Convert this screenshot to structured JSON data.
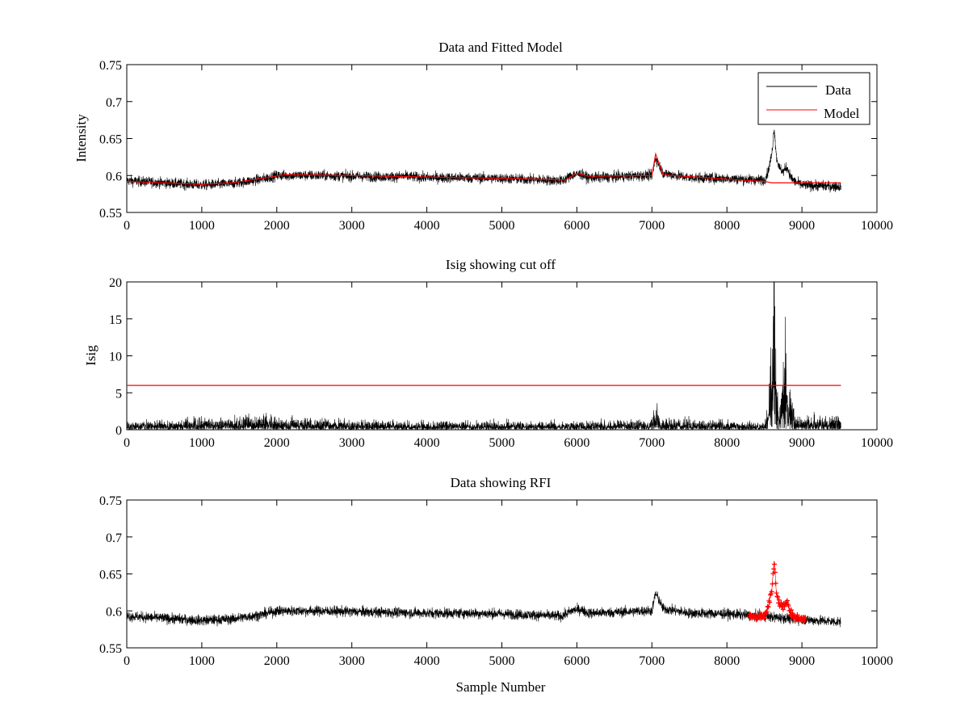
{
  "colors": {
    "data": "#000000",
    "model": "#ff0000",
    "axes": "#000000",
    "background": "#ffffff"
  },
  "chart_data": [
    {
      "type": "line",
      "title": "Data and Fitted Model",
      "xlabel": "",
      "ylabel": "Intensity",
      "xlim": [
        0,
        10000
      ],
      "ylim": [
        0.55,
        0.75
      ],
      "xticks": [
        0,
        1000,
        2000,
        3000,
        4000,
        5000,
        6000,
        7000,
        8000,
        9000,
        10000
      ],
      "yticks": [
        0.55,
        0.6,
        0.65,
        0.7,
        0.75
      ],
      "ytick_labels": [
        "0.55",
        "0.6",
        "0.65",
        "0.7",
        "0.75"
      ],
      "legend": {
        "placement": "top-right",
        "entries": [
          "Data",
          "Model"
        ]
      },
      "series": [
        {
          "name": "Data",
          "color": "#000000",
          "noise": 0.005,
          "points": [
            [
              0,
              0.593
            ],
            [
              500,
              0.59
            ],
            [
              1000,
              0.587
            ],
            [
              1400,
              0.589
            ],
            [
              1800,
              0.595
            ],
            [
              2000,
              0.6
            ],
            [
              2500,
              0.6
            ],
            [
              3000,
              0.599
            ],
            [
              3500,
              0.598
            ],
            [
              3700,
              0.599
            ],
            [
              4000,
              0.597
            ],
            [
              4500,
              0.597
            ],
            [
              5000,
              0.596
            ],
            [
              5800,
              0.593
            ],
            [
              5950,
              0.601
            ],
            [
              6050,
              0.602
            ],
            [
              6150,
              0.597
            ],
            [
              6500,
              0.598
            ],
            [
              6900,
              0.6
            ],
            [
              7000,
              0.6
            ],
            [
              7050,
              0.624
            ],
            [
              7150,
              0.603
            ],
            [
              7500,
              0.597
            ],
            [
              8000,
              0.596
            ],
            [
              8400,
              0.594
            ],
            [
              8500,
              0.594
            ],
            [
              8550,
              0.605
            ],
            [
              8600,
              0.63
            ],
            [
              8630,
              0.665
            ],
            [
              8660,
              0.625
            ],
            [
              8700,
              0.61
            ],
            [
              8750,
              0.605
            ],
            [
              8800,
              0.612
            ],
            [
              8850,
              0.598
            ],
            [
              8900,
              0.592
            ],
            [
              9000,
              0.587
            ],
            [
              9520,
              0.585
            ]
          ]
        },
        {
          "name": "Model",
          "color": "#ff0000",
          "noise": 0,
          "points": [
            [
              0,
              0.592
            ],
            [
              1000,
              0.588
            ],
            [
              1400,
              0.59
            ],
            [
              1800,
              0.596
            ],
            [
              2100,
              0.601
            ],
            [
              3000,
              0.6
            ],
            [
              4000,
              0.598
            ],
            [
              5000,
              0.596
            ],
            [
              5850,
              0.594
            ],
            [
              6000,
              0.603
            ],
            [
              6150,
              0.599
            ],
            [
              7000,
              0.6
            ],
            [
              7050,
              0.629
            ],
            [
              7150,
              0.601
            ],
            [
              8000,
              0.595
            ],
            [
              8500,
              0.592
            ],
            [
              8600,
              0.59
            ],
            [
              9520,
              0.59
            ]
          ]
        }
      ]
    },
    {
      "type": "line",
      "title": "Isig showing cut off",
      "xlabel": "",
      "ylabel": "Isig",
      "xlim": [
        0,
        10000
      ],
      "ylim": [
        0,
        20
      ],
      "xticks": [
        0,
        1000,
        2000,
        3000,
        4000,
        5000,
        6000,
        7000,
        8000,
        9000,
        10000
      ],
      "yticks": [
        0,
        5,
        10,
        15,
        20
      ],
      "ytick_labels": [
        "0",
        "5",
        "10",
        "15",
        "20"
      ],
      "cutoff": {
        "value": 6,
        "x": [
          0,
          9520
        ],
        "color": "#ff0000"
      },
      "series": [
        {
          "color": "#000000",
          "points": [
            [
              0,
              0.6
            ],
            [
              500,
              0.8
            ],
            [
              1000,
              0.9
            ],
            [
              1500,
              1.1
            ],
            [
              1700,
              1.3
            ],
            [
              2000,
              1.0
            ],
            [
              3000,
              0.8
            ],
            [
              4000,
              0.7
            ],
            [
              5000,
              0.7
            ],
            [
              6000,
              0.7
            ],
            [
              7000,
              0.9
            ],
            [
              7050,
              2.0
            ],
            [
              7100,
              0.9
            ],
            [
              8000,
              0.7
            ],
            [
              8500,
              0.7
            ],
            [
              8550,
              2.5
            ],
            [
              8600,
              8.0
            ],
            [
              8625,
              17.3
            ],
            [
              8650,
              6.0
            ],
            [
              8700,
              1.5
            ],
            [
              8750,
              5.0
            ],
            [
              8780,
              8.0
            ],
            [
              8800,
              3.0
            ],
            [
              8850,
              4.5
            ],
            [
              8900,
              1.5
            ],
            [
              9000,
              1.2
            ],
            [
              9520,
              1.0
            ]
          ]
        }
      ]
    },
    {
      "type": "line",
      "title": "Data showing RFI",
      "xlabel": "Sample Number",
      "ylabel": "",
      "xlim": [
        0,
        10000
      ],
      "ylim": [
        0.55,
        0.75
      ],
      "xticks": [
        0,
        1000,
        2000,
        3000,
        4000,
        5000,
        6000,
        7000,
        8000,
        9000,
        10000
      ],
      "yticks": [
        0.55,
        0.6,
        0.65,
        0.7,
        0.75
      ],
      "ytick_labels": [
        "0.55",
        "0.6",
        "0.65",
        "0.7",
        "0.75"
      ],
      "series": [
        {
          "color": "#000000",
          "noise": 0.005,
          "points": [
            [
              0,
              0.593
            ],
            [
              500,
              0.59
            ],
            [
              1000,
              0.587
            ],
            [
              1400,
              0.589
            ],
            [
              1800,
              0.595
            ],
            [
              2000,
              0.6
            ],
            [
              2500,
              0.6
            ],
            [
              3000,
              0.599
            ],
            [
              3500,
              0.598
            ],
            [
              4000,
              0.597
            ],
            [
              4500,
              0.597
            ],
            [
              5000,
              0.596
            ],
            [
              5800,
              0.593
            ],
            [
              5950,
              0.601
            ],
            [
              6050,
              0.602
            ],
            [
              6150,
              0.597
            ],
            [
              6500,
              0.598
            ],
            [
              6900,
              0.6
            ],
            [
              7000,
              0.6
            ],
            [
              7050,
              0.624
            ],
            [
              7150,
              0.603
            ],
            [
              7500,
              0.597
            ],
            [
              8000,
              0.596
            ],
            [
              8300,
              0.594
            ],
            [
              9050,
              0.588
            ],
            [
              9520,
              0.585
            ]
          ]
        },
        {
          "name": "RFI",
          "color": "#ff0000",
          "marker": "+",
          "noise": 0.004,
          "points": [
            [
              8300,
              0.592
            ],
            [
              8400,
              0.593
            ],
            [
              8500,
              0.594
            ],
            [
              8550,
              0.605
            ],
            [
              8600,
              0.63
            ],
            [
              8630,
              0.665
            ],
            [
              8660,
              0.625
            ],
            [
              8700,
              0.61
            ],
            [
              8750,
              0.605
            ],
            [
              8800,
              0.612
            ],
            [
              8850,
              0.598
            ],
            [
              8900,
              0.592
            ],
            [
              9000,
              0.589
            ],
            [
              9050,
              0.588
            ]
          ]
        }
      ]
    }
  ]
}
